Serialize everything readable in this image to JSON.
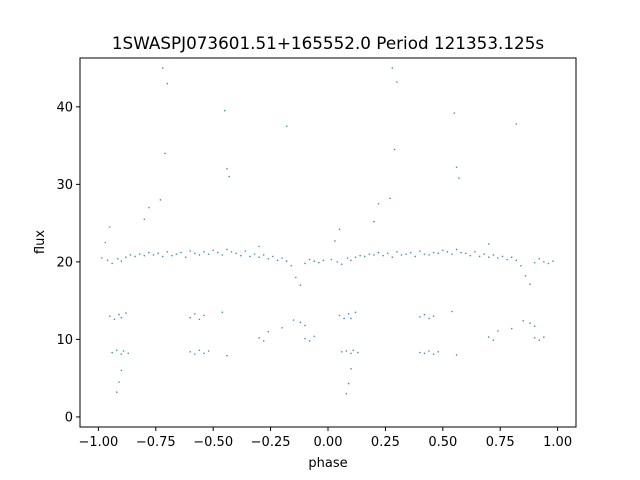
{
  "chart_data": {
    "type": "scatter",
    "title": "1SWASPJ073601.51+165552.0 Period 121353.125s",
    "xlabel": "phase",
    "ylabel": "flux",
    "xlim": [
      -1.08,
      1.08
    ],
    "ylim": [
      -1.3,
      46.3
    ],
    "xticks": [
      -1.0,
      -0.75,
      -0.5,
      -0.25,
      0.0,
      0.25,
      0.5,
      0.75,
      1.0
    ],
    "xtick_labels": [
      "−1.00",
      "−0.75",
      "−0.50",
      "−0.25",
      "0.00",
      "0.25",
      "0.50",
      "0.75",
      "1.00"
    ],
    "yticks": [
      0,
      10,
      20,
      30,
      40
    ],
    "ytick_labels": [
      "0",
      "10",
      "20",
      "30",
      "40"
    ],
    "grid": false,
    "legend": "none",
    "point_color": "#1f77b4",
    "series": [
      {
        "x": [
          -0.985,
          -0.96,
          -0.94,
          -0.915,
          -0.9,
          -0.88,
          -0.86,
          -0.84,
          -0.82,
          -0.8,
          -0.78,
          -0.76,
          -0.74,
          -0.72,
          -0.7,
          -0.68,
          -0.66,
          -0.64,
          -0.62,
          -0.6,
          -0.58,
          -0.56,
          -0.54,
          -0.52,
          -0.5,
          -0.48,
          -0.46,
          -0.44,
          -0.42,
          -0.4,
          -0.38,
          -0.36,
          -0.34,
          -0.32,
          -0.3,
          -0.28,
          -0.26,
          -0.24,
          -0.22,
          -0.2,
          -0.18,
          -0.16,
          -0.14,
          -0.12,
          -0.1,
          -0.08,
          -0.06,
          -0.04,
          -0.02,
          -0.95,
          -0.93,
          -0.91,
          -0.9,
          -0.88,
          -0.94,
          -0.92,
          -0.9,
          -0.89,
          -0.87,
          -0.6,
          -0.58,
          -0.56,
          -0.54,
          -0.6,
          -0.58,
          -0.56,
          -0.54,
          -0.52,
          -0.46,
          -0.44,
          -0.3,
          -0.28,
          -0.26,
          -0.2,
          -0.15,
          -0.1,
          -0.08,
          -0.06,
          -0.12,
          -0.1,
          -0.72,
          -0.7,
          -0.71,
          -0.73,
          -0.45,
          -0.44,
          -0.43,
          -0.78,
          -0.8,
          -0.9,
          -0.91,
          -0.92,
          -0.95,
          -0.97,
          -0.3,
          -0.18,
          0.015,
          0.04,
          0.06,
          0.085,
          0.1,
          0.12,
          0.14,
          0.16,
          0.18,
          0.2,
          0.22,
          0.24,
          0.26,
          0.28,
          0.3,
          0.32,
          0.34,
          0.36,
          0.38,
          0.4,
          0.42,
          0.44,
          0.46,
          0.48,
          0.5,
          0.52,
          0.54,
          0.56,
          0.58,
          0.6,
          0.62,
          0.64,
          0.66,
          0.68,
          0.7,
          0.72,
          0.74,
          0.76,
          0.78,
          0.8,
          0.82,
          0.84,
          0.86,
          0.88,
          0.9,
          0.92,
          0.94,
          0.96,
          0.98,
          0.05,
          0.07,
          0.09,
          0.1,
          0.12,
          0.06,
          0.08,
          0.1,
          0.11,
          0.13,
          0.4,
          0.42,
          0.44,
          0.46,
          0.4,
          0.42,
          0.44,
          0.46,
          0.48,
          0.54,
          0.56,
          0.7,
          0.72,
          0.74,
          0.8,
          0.85,
          0.9,
          0.92,
          0.94,
          0.88,
          0.9,
          0.28,
          0.3,
          0.29,
          0.27,
          0.55,
          0.56,
          0.57,
          0.22,
          0.2,
          0.1,
          0.09,
          0.08,
          0.05,
          0.03,
          0.7,
          0.82
        ],
        "y": [
          20.5,
          20.2,
          19.8,
          20.4,
          20.1,
          20.6,
          20.9,
          20.7,
          21.0,
          20.8,
          21.2,
          20.9,
          21.1,
          20.7,
          21.3,
          20.8,
          21.0,
          21.2,
          20.6,
          21.4,
          21.1,
          20.9,
          21.3,
          21.0,
          21.5,
          21.2,
          20.9,
          21.6,
          21.3,
          21.1,
          20.8,
          21.4,
          20.7,
          21.0,
          20.6,
          20.9,
          20.4,
          20.7,
          20.2,
          20.5,
          20.1,
          19.5,
          18.0,
          17.0,
          19.8,
          20.3,
          20.1,
          19.9,
          20.2,
          13.0,
          12.6,
          13.2,
          12.8,
          13.4,
          8.3,
          8.6,
          8.1,
          8.5,
          8.2,
          12.8,
          13.3,
          12.6,
          13.1,
          8.4,
          8.1,
          8.6,
          8.2,
          8.5,
          13.5,
          7.9,
          10.2,
          9.8,
          11.0,
          11.5,
          12.5,
          10.1,
          9.8,
          10.4,
          12.2,
          11.8,
          45.0,
          43.0,
          34.0,
          28.0,
          39.5,
          32.0,
          31.0,
          27.0,
          25.5,
          6.0,
          4.5,
          3.2,
          24.5,
          22.5,
          22.0,
          37.5,
          20.3,
          20.0,
          19.7,
          20.5,
          20.2,
          20.6,
          20.8,
          20.7,
          21.0,
          20.9,
          21.2,
          20.8,
          21.1,
          20.6,
          21.3,
          20.9,
          21.0,
          21.2,
          20.7,
          21.4,
          21.0,
          20.9,
          21.2,
          21.1,
          21.5,
          21.3,
          21.0,
          21.6,
          21.2,
          21.1,
          20.8,
          21.3,
          20.7,
          21.0,
          20.6,
          20.9,
          20.5,
          20.7,
          20.3,
          20.6,
          20.2,
          19.5,
          18.2,
          17.1,
          19.9,
          20.4,
          20.0,
          19.8,
          20.1,
          13.1,
          12.7,
          13.3,
          12.7,
          13.5,
          8.4,
          8.5,
          8.2,
          8.6,
          8.3,
          12.9,
          13.2,
          12.7,
          13.0,
          8.3,
          8.2,
          8.5,
          8.1,
          8.4,
          13.6,
          8.0,
          10.3,
          9.9,
          11.1,
          11.4,
          12.4,
          10.2,
          9.9,
          10.3,
          12.1,
          11.7,
          45.0,
          43.2,
          34.5,
          28.2,
          39.2,
          32.2,
          30.8,
          27.5,
          25.2,
          6.2,
          4.3,
          3.0,
          24.2,
          22.7,
          22.3,
          37.8
        ]
      }
    ]
  }
}
